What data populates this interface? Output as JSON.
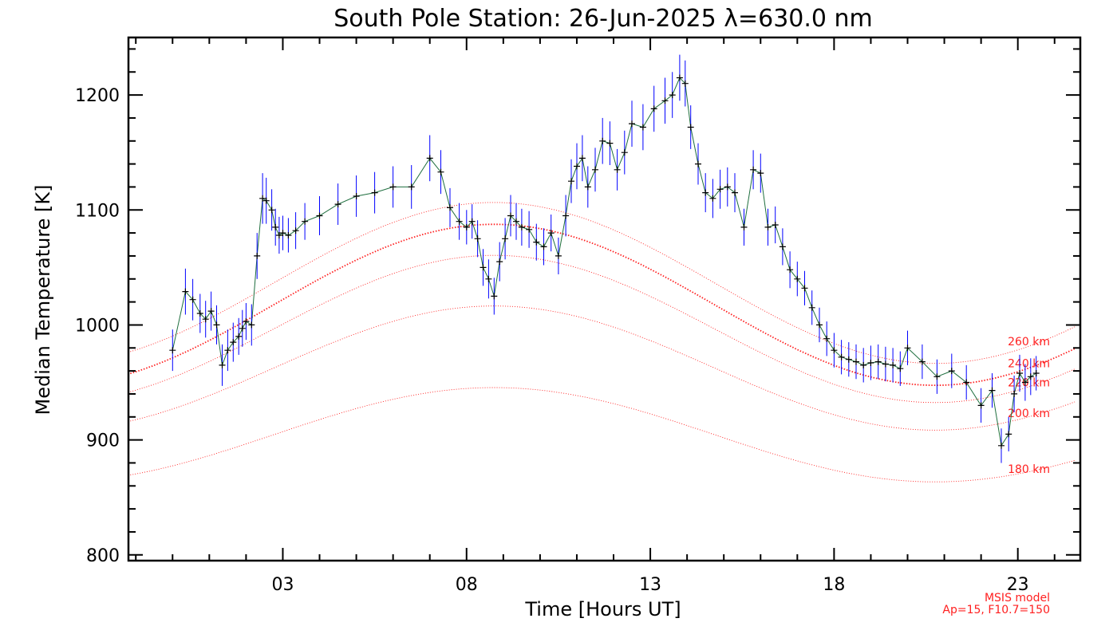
{
  "chart_data": {
    "type": "line",
    "title": "South Pole Station: 26-Jun-2025 λ=630.0 nm",
    "xlabel": "Time [Hours UT]",
    "ylabel": "Median Temperature [K]",
    "xlim": [
      -1.2,
      24.7
    ],
    "ylim": [
      795,
      1250
    ],
    "x_ticks": [
      {
        "value": 3,
        "label": "03"
      },
      {
        "value": 8,
        "label": "08"
      },
      {
        "value": 13,
        "label": "13"
      },
      {
        "value": 18,
        "label": "18"
      },
      {
        "value": 23,
        "label": "23"
      }
    ],
    "y_ticks": [
      {
        "value": 800,
        "label": "800"
      },
      {
        "value": 900,
        "label": "900"
      },
      {
        "value": 1000,
        "label": "1000"
      },
      {
        "value": 1100,
        "label": "1100"
      },
      {
        "value": 1200,
        "label": "1200"
      }
    ],
    "colors": {
      "data": "#000000",
      "errorbar": "#0000ff",
      "connect": "#1e6e3e",
      "model": "#ff2020"
    },
    "series": [
      {
        "x": [
          0.0,
          0.35,
          0.55,
          0.75,
          0.9,
          1.05,
          1.2,
          1.35,
          1.5,
          1.65,
          1.8,
          1.9,
          2.0,
          2.15,
          2.3,
          2.45,
          2.55,
          2.7,
          2.8,
          2.9,
          3.0,
          3.15,
          3.35,
          3.6,
          4.0,
          4.5,
          5.0,
          5.5,
          6.0,
          6.5,
          7.0,
          7.3,
          7.55,
          7.8,
          8.0,
          8.15,
          8.3,
          8.45,
          8.6,
          8.75,
          8.9,
          9.05,
          9.2,
          9.35,
          9.5,
          9.7,
          9.9,
          10.1,
          10.3,
          10.5,
          10.7,
          10.85,
          11.0,
          11.15,
          11.3,
          11.5,
          11.7,
          11.9,
          12.1,
          12.3,
          12.5,
          12.8,
          13.1,
          13.4,
          13.6,
          13.8,
          13.95,
          14.1,
          14.3,
          14.5,
          14.7,
          14.9,
          15.1,
          15.3,
          15.55,
          15.8,
          16.0,
          16.2,
          16.4,
          16.6,
          16.8,
          17.0,
          17.2,
          17.4,
          17.6,
          17.8,
          18.0,
          18.2,
          18.4,
          18.6,
          18.8,
          19.0,
          19.2,
          19.4,
          19.6,
          19.8,
          20.0,
          20.4,
          20.8,
          21.2,
          21.6,
          22.0,
          22.3,
          22.55,
          22.75,
          22.9,
          23.05,
          23.2,
          23.35,
          23.5
        ],
        "y": [
          978,
          1029,
          1022,
          1010,
          1005,
          1012,
          1000,
          965,
          978,
          985,
          990,
          997,
          1003,
          1000,
          1060,
          1110,
          1108,
          1100,
          1085,
          1078,
          1080,
          1078,
          1082,
          1090,
          1095,
          1105,
          1112,
          1115,
          1120,
          1120,
          1145,
          1133,
          1102,
          1090,
          1085,
          1090,
          1075,
          1050,
          1040,
          1025,
          1055,
          1075,
          1095,
          1090,
          1085,
          1083,
          1072,
          1068,
          1080,
          1060,
          1095,
          1125,
          1138,
          1145,
          1120,
          1135,
          1160,
          1158,
          1135,
          1150,
          1175,
          1172,
          1188,
          1195,
          1200,
          1215,
          1210,
          1172,
          1140,
          1115,
          1110,
          1118,
          1120,
          1115,
          1085,
          1135,
          1132,
          1085,
          1087,
          1068,
          1048,
          1040,
          1032,
          1015,
          1000,
          988,
          978,
          972,
          970,
          968,
          965,
          967,
          968,
          966,
          965,
          962,
          980,
          968,
          955,
          960,
          950,
          930,
          943,
          895,
          905,
          940,
          958,
          950,
          955,
          958
        ],
        "err": [
          18,
          20,
          18,
          17,
          16,
          17,
          17,
          18,
          18,
          17,
          16,
          16,
          16,
          18,
          20,
          22,
          20,
          18,
          16,
          16,
          15,
          15,
          16,
          16,
          17,
          18,
          18,
          18,
          18,
          19,
          20,
          19,
          17,
          16,
          15,
          15,
          16,
          16,
          17,
          16,
          17,
          18,
          18,
          16,
          16,
          16,
          16,
          16,
          16,
          16,
          18,
          19,
          20,
          20,
          18,
          19,
          20,
          19,
          18,
          19,
          20,
          20,
          20,
          20,
          20,
          20,
          20,
          19,
          18,
          17,
          17,
          17,
          17,
          17,
          16,
          17,
          17,
          16,
          16,
          16,
          16,
          15,
          15,
          15,
          15,
          15,
          15,
          15,
          15,
          15,
          15,
          15,
          15,
          15,
          15,
          15,
          15,
          15,
          15,
          15,
          15,
          15,
          15,
          15,
          15,
          16,
          16,
          16,
          16,
          15
        ]
      }
    ],
    "model_curves": [
      {
        "label": "260 km",
        "base": 1036.5,
        "amp": 70,
        "bold": false
      },
      {
        "label": "240 km",
        "base": 1017.5,
        "amp": 70,
        "bold": true
      },
      {
        "label": "220 km",
        "base": 996.5,
        "amp": 64,
        "bold": false
      },
      {
        "label": "200 km",
        "base": 962.5,
        "amp": 54,
        "bold": false
      },
      {
        "label": "180 km",
        "base": 904.5,
        "amp": 41,
        "bold": false
      }
    ],
    "model_note": [
      "MSIS model",
      "Ap=15, F10.7=150"
    ]
  }
}
